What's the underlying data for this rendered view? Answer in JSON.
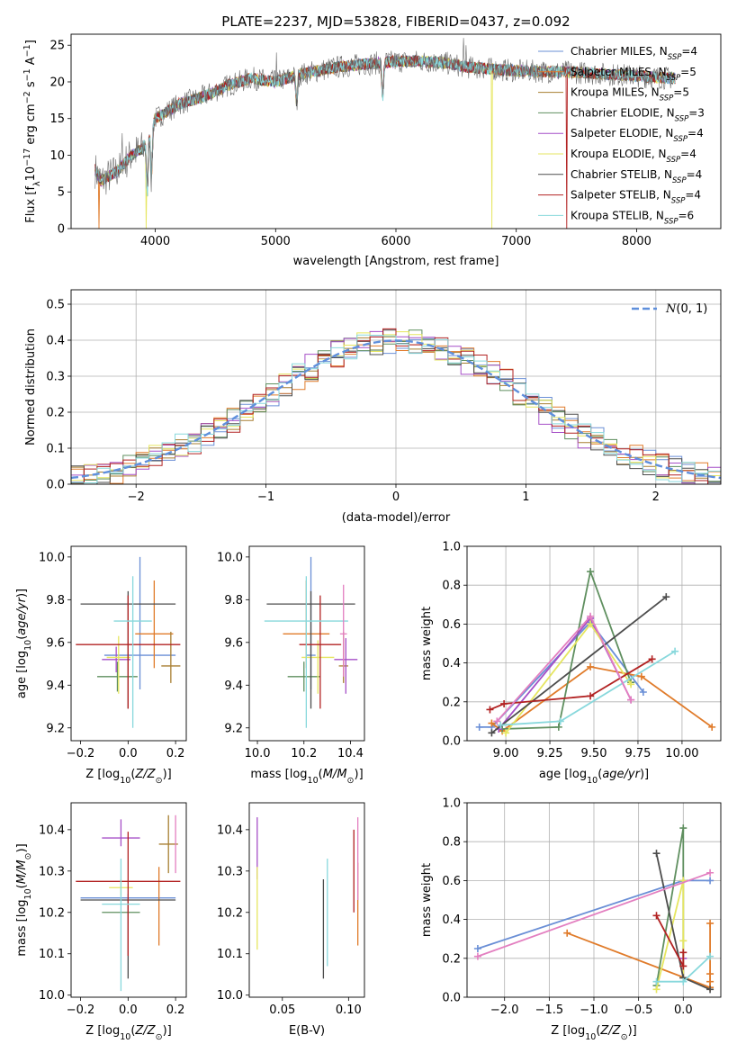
{
  "title": "PLATE=2237, MJD=53828, FIBERID=0437, z=0.092",
  "colors": {
    "Chabrier MILES": "#6a8fd6",
    "Salpeter MILES": "#e07b2a",
    "Kroupa MILES": "#a87f32",
    "Chabrier ELODIE": "#5f8f5f",
    "Salpeter ELODIE": "#a64fc7",
    "Kroupa ELODIE": "#e6e660",
    "Chabrier STELIB": "#4d4d4d",
    "Salpeter STELIB": "#b22222",
    "Kroupa STELIB": "#88d8dc",
    "Kroupa MILES solution": "#e37fc0",
    "normal": "#5f8fdc",
    "spectrum": "#6b6b6b"
  },
  "chart_data": [
    {
      "type": "line",
      "xlabel": "wavelength [Angstrom, rest frame]",
      "ylabel": "Flux [f_λ 10^-17 erg cm^-2 s^-1 A^-1]",
      "xlim": [
        3300,
        8700
      ],
      "ylim": [
        0,
        26.5
      ],
      "xticks": [
        "4000",
        "5000",
        "6000",
        "7000",
        "8000"
      ],
      "yticks": [
        "0",
        "5",
        "10",
        "15",
        "20",
        "25"
      ],
      "legend": "top-right",
      "legend_entries": [
        "Chabrier MILES, N_SSP=4",
        "Salpeter MILES, N_SSP=5",
        "Kroupa MILES, N_SSP=5",
        "Chabrier ELODIE, N_SSP=3",
        "Salpeter ELODIE, N_SSP=4",
        "Kroupa ELODIE, N_SSP=4",
        "Chabrier STELIB, N_SSP=4",
        "Salpeter STELIB, N_SSP=4",
        "Kroupa STELIB, N_SSP=6"
      ],
      "continuum": [
        [
          3500,
          8
        ],
        [
          3550,
          6.5
        ],
        [
          3700,
          8
        ],
        [
          3800,
          10
        ],
        [
          3900,
          11
        ],
        [
          4000,
          15
        ],
        [
          4200,
          17
        ],
        [
          4400,
          18
        ],
        [
          4600,
          19.5
        ],
        [
          4800,
          20.5
        ],
        [
          5000,
          20
        ],
        [
          5200,
          21
        ],
        [
          5500,
          22
        ],
        [
          5800,
          22.5
        ],
        [
          6000,
          22.8
        ],
        [
          6200,
          22.8
        ],
        [
          6400,
          22.6
        ],
        [
          6600,
          22
        ],
        [
          7000,
          21.5
        ],
        [
          7500,
          21.3
        ],
        [
          8000,
          20.8
        ],
        [
          8300,
          20.5
        ]
      ],
      "emission_lines": [
        [
          3727,
          13
        ],
        [
          5007,
          24
        ],
        [
          6563,
          26
        ],
        [
          6583,
          25
        ]
      ],
      "absorption_lines": [
        [
          3933,
          5
        ],
        [
          3968,
          7
        ],
        [
          5175,
          17
        ],
        [
          5890,
          18
        ]
      ],
      "model_dropouts": [
        [
          3530,
          "Salpeter MILES"
        ],
        [
          3925,
          "Kroupa ELODIE"
        ],
        [
          6800,
          "Kroupa ELODIE"
        ],
        [
          7420,
          "Salpeter STELIB"
        ]
      ]
    },
    {
      "type": "histogram",
      "xlabel": "(data-model)/error",
      "ylabel": "Normed distribution",
      "xlim": [
        -2.5,
        2.5
      ],
      "ylim": [
        0,
        0.54
      ],
      "xticks": [
        "−2",
        "−1",
        "0",
        "1",
        "2"
      ],
      "yticks": [
        "0.0",
        "0.1",
        "0.2",
        "0.3",
        "0.4",
        "0.5"
      ],
      "legend": "top-right",
      "legend_entries": [
        "N(0,1)"
      ],
      "bin_width": 0.1
    },
    {
      "type": "errorbar",
      "xlabel": "Z [log10(Z/Z☉)]",
      "ylabel": "age  [log10(age/yr)]",
      "xlim": [
        -0.24,
        0.245
      ],
      "ylim": [
        9.14,
        10.05
      ],
      "xticks": [
        "−0.2",
        "0.0",
        "0.2"
      ],
      "yticks": [
        "9.2",
        "9.4",
        "9.6",
        "9.8",
        "10.0"
      ],
      "points": [
        {
          "series": "Chabrier MILES",
          "x": 0.05,
          "xerr": 0.15,
          "y": 9.54,
          "yerr": [
            0.16,
            0.46
          ]
        },
        {
          "series": "Salpeter MILES",
          "x": 0.11,
          "xerr": 0.08,
          "y": 9.64,
          "yerr": [
            0.16,
            0.25
          ]
        },
        {
          "series": "Kroupa MILES",
          "x": 0.18,
          "xerr": 0.04,
          "y": 9.49,
          "yerr": [
            0.08,
            0.16
          ]
        },
        {
          "series": "Chabrier ELODIE",
          "x": -0.045,
          "xerr": 0.085,
          "y": 9.44,
          "yerr": [
            0.07,
            0.07
          ]
        },
        {
          "series": "Salpeter ELODIE",
          "x": -0.05,
          "xerr": 0.06,
          "y": 9.52,
          "yerr": [
            0.06,
            0.06
          ]
        },
        {
          "series": "Kroupa ELODIE",
          "x": -0.04,
          "xerr": 0.05,
          "y": 9.53,
          "yerr": [
            0.17,
            0.1
          ]
        },
        {
          "series": "Chabrier STELIB",
          "x": 0.0,
          "xerr": 0.2,
          "y": 9.78,
          "yerr": [
            0.49,
            0.06
          ]
        },
        {
          "series": "Salpeter STELIB",
          "x": 0.0,
          "xerr": 0.22,
          "y": 9.59,
          "yerr": [
            0.3,
            0.23
          ]
        },
        {
          "series": "Kroupa STELIB",
          "x": 0.02,
          "xerr": 0.08,
          "y": 9.7,
          "yerr": [
            0.5,
            0.21
          ]
        }
      ]
    },
    {
      "type": "errorbar",
      "xlabel": "mass [log10(M/M☉)]",
      "ylabel": "",
      "xlim": [
        9.965,
        10.46
      ],
      "ylim": [
        9.14,
        10.05
      ],
      "xticks": [
        "10.0",
        "10.2",
        "10.4"
      ],
      "yticks": [
        "9.2",
        "9.4",
        "9.6",
        "9.8",
        "10.0"
      ],
      "points": [
        {
          "series": "Chabrier MILES",
          "x": 10.23,
          "xerr": 0.02,
          "y": 9.54,
          "yerr": [
            0.16,
            0.46
          ]
        },
        {
          "series": "Salpeter MILES",
          "x": 10.21,
          "xerr": 0.1,
          "y": 9.64,
          "yerr": [
            0.16,
            0.25
          ]
        },
        {
          "series": "Kroupa MILES",
          "x": 10.37,
          "xerr": 0.02,
          "y": 9.49,
          "yerr": [
            0.08,
            0.16
          ]
        },
        {
          "series": "Chabrier ELODIE",
          "x": 10.2,
          "xerr": 0.07,
          "y": 9.44,
          "yerr": [
            0.07,
            0.07
          ]
        },
        {
          "series": "Salpeter ELODIE",
          "x": 10.38,
          "xerr": 0.05,
          "y": 9.52,
          "yerr": [
            0.16,
            0.1
          ]
        },
        {
          "series": "Kroupa ELODIE",
          "x": 10.26,
          "xerr": 0.07,
          "y": 9.53,
          "yerr": [
            0.17,
            0.08
          ]
        },
        {
          "series": "Chabrier STELIB",
          "x": 10.23,
          "xerr": 0.19,
          "y": 9.78,
          "yerr": [
            0.49,
            0.06
          ]
        },
        {
          "series": "Salpeter STELIB",
          "x": 10.27,
          "xerr": 0.09,
          "y": 9.59,
          "yerr": [
            0.3,
            0.23
          ]
        },
        {
          "series": "Kroupa STELIB",
          "x": 10.21,
          "xerr": 0.18,
          "y": 9.7,
          "yerr": [
            0.5,
            0.21
          ]
        },
        {
          "series": "Kroupa MILES solution",
          "x": 10.37,
          "xerr": 0.015,
          "y": 9.64,
          "yerr": [
            0.2,
            0.23
          ]
        }
      ]
    },
    {
      "type": "line",
      "xlabel": "age  [log10(age/yr)]",
      "ylabel": "mass weight",
      "xlim": [
        8.78,
        10.22
      ],
      "ylim": [
        0,
        1
      ],
      "xticks": [
        "9.00",
        "9.25",
        "9.50",
        "9.75",
        "10.00"
      ],
      "yticks": [
        "0.0",
        "0.2",
        "0.4",
        "0.6",
        "0.8",
        "1.0"
      ],
      "series": [
        {
          "name": "Chabrier MILES",
          "x": [
            8.85,
            8.92,
            9.48,
            9.78
          ],
          "y": [
            0.07,
            0.07,
            0.61,
            0.25
          ]
        },
        {
          "name": "Salpeter MILES",
          "x": 8.92,
          "xs": [
            8.92,
            8.98,
            9.48,
            9.77,
            10.17
          ],
          "y": [
            0.09,
            0.05,
            0.38,
            0.33,
            0.07
          ]
        },
        {
          "name": "Chabrier ELODIE",
          "x": [
            8.98,
            9.3,
            9.48,
            9.71
          ],
          "y": [
            0.06,
            0.07,
            0.87,
            0.3
          ]
        },
        {
          "name": "Salpeter ELODIE",
          "x": [
            8.96,
            9.48,
            9.71
          ],
          "y": [
            0.06,
            0.63,
            0.21
          ]
        },
        {
          "name": "Kroupa ELODIE",
          "x": [
            9.0,
            9.48,
            9.71
          ],
          "y": [
            0.04,
            0.6,
            0.29
          ]
        },
        {
          "name": "Chabrier STELIB",
          "x": [
            8.92,
            9.91
          ],
          "y": [
            0.04,
            0.74
          ]
        },
        {
          "name": "Salpeter STELIB",
          "x": [
            8.91,
            8.99,
            9.48,
            9.83
          ],
          "y": [
            0.16,
            0.19,
            0.23,
            0.42
          ]
        },
        {
          "name": "Kroupa STELIB",
          "x": [
            8.97,
            9.31,
            9.96
          ],
          "y": [
            0.08,
            0.1,
            0.46
          ]
        },
        {
          "name": "Kroupa MILES solution",
          "x": [
            8.95,
            9.48,
            9.71
          ],
          "y": [
            0.1,
            0.64,
            0.21
          ]
        }
      ]
    },
    {
      "type": "errorbar",
      "xlabel": "Z [log10(Z/Z☉)]",
      "ylabel": "mass [log10(M/M☉)]",
      "xlim": [
        -0.24,
        0.245
      ],
      "ylim": [
        9.995,
        10.465
      ],
      "xticks": [
        "−0.2",
        "0.0",
        "0.2"
      ],
      "yticks": [
        "10.0",
        "10.1",
        "10.2",
        "10.3",
        "10.4"
      ],
      "points": [
        {
          "series": "Chabrier MILES",
          "x": 0.0,
          "xerr": 0.2,
          "y": 10.235,
          "yerr": [
            0.01,
            0.01
          ]
        },
        {
          "series": "Salpeter MILES",
          "x": 0.13,
          "xerr": 0.0,
          "y": 10.21,
          "yerr": [
            0.09,
            0.1
          ]
        },
        {
          "series": "Kroupa MILES",
          "x": 0.17,
          "xerr": 0.04,
          "y": 10.365,
          "yerr": [
            0.07,
            0.07
          ]
        },
        {
          "series": "Chabrier ELODIE",
          "x": -0.03,
          "xerr": 0.08,
          "y": 10.2,
          "yerr": [
            0.0,
            0.0
          ]
        },
        {
          "series": "Salpeter ELODIE",
          "x": -0.03,
          "xerr": 0.08,
          "y": 10.38,
          "yerr": [
            0.02,
            0.045
          ]
        },
        {
          "series": "Kroupa ELODIE",
          "x": -0.03,
          "xerr": 0.05,
          "y": 10.26,
          "yerr": [
            0.02,
            0.02
          ]
        },
        {
          "series": "Chabrier STELIB",
          "x": 0.0,
          "xerr": 0.2,
          "y": 10.23,
          "yerr": [
            0.19,
            0.0
          ]
        },
        {
          "series": "Salpeter STELIB",
          "x": 0.0,
          "xerr": 0.22,
          "y": 10.275,
          "yerr": [
            0.18,
            0.12
          ]
        },
        {
          "series": "Kroupa STELIB",
          "x": -0.03,
          "xerr": 0.08,
          "y": 10.22,
          "yerr": [
            0.21,
            0.11
          ]
        },
        {
          "series": "Kroupa MILES solution",
          "x": 0.2,
          "xerr": 0.0,
          "y": 10.365,
          "yerr": [
            0.07,
            0.07
          ]
        }
      ]
    },
    {
      "type": "errorbar",
      "xlabel": "E(B-V)",
      "ylabel": "",
      "xlim": [
        0.025,
        0.112
      ],
      "ylim": [
        9.995,
        10.465
      ],
      "xticks": [
        "0.05",
        "0.10"
      ],
      "yticks": [
        "10.0",
        "10.1",
        "10.2",
        "10.3",
        "10.4"
      ],
      "points": [
        {
          "series": "Salpeter ELODIE",
          "x": 0.031,
          "y": 10.36,
          "yerr": [
            0.08,
            0.07
          ]
        },
        {
          "series": "Kroupa ELODIE",
          "x": 0.031,
          "y": 10.21,
          "yerr": [
            0.1,
            0.1
          ]
        },
        {
          "series": "Chabrier STELIB",
          "x": 0.081,
          "y": 10.16,
          "yerr": [
            0.12,
            0.12
          ]
        },
        {
          "series": "Kroupa STELIB",
          "x": 0.084,
          "y": 10.2,
          "yerr": [
            0.13,
            0.13
          ]
        },
        {
          "series": "Salpeter STELIB",
          "x": 0.104,
          "y": 10.3,
          "yerr": [
            0.1,
            0.1
          ]
        },
        {
          "series": "Salpeter MILES",
          "x": 0.107,
          "y": 10.22,
          "yerr": [
            0.1,
            0.1
          ]
        },
        {
          "series": "Kroupa MILES solution",
          "x": 0.107,
          "y": 10.33,
          "yerr": [
            0.1,
            0.1
          ]
        }
      ]
    },
    {
      "type": "line",
      "xlabel": "Z [log10(Z/Z☉)]",
      "ylabel": "mass weight",
      "xlim": [
        -2.42,
        0.42
      ],
      "ylim": [
        0,
        1
      ],
      "xticks": [
        "−2.0",
        "−1.5",
        "−1.0",
        "−0.5",
        "0.0"
      ],
      "yticks": [
        "0.0",
        "0.2",
        "0.4",
        "0.6",
        "0.8",
        "1.0"
      ],
      "series": [
        {
          "name": "Chabrier MILES",
          "x": [
            -2.3,
            0.0,
            0.3
          ],
          "y": [
            0.25,
            0.6,
            0.6
          ]
        },
        {
          "name": "Salpeter MILES",
          "x": [
            -1.3,
            0.3,
            0.3,
            0.3,
            0.3
          ],
          "y": [
            0.33,
            0.05,
            0.38,
            0.12,
            0.08
          ]
        },
        {
          "name": "Chabrier ELODIE",
          "x": [
            -0.3,
            0.0,
            0.0
          ],
          "y": [
            0.06,
            0.87,
            0.1
          ]
        },
        {
          "name": "Salpeter ELODIE",
          "x": [
            0.0,
            0.0
          ],
          "y": [
            0.1,
            0.2
          ]
        },
        {
          "name": "Kroupa ELODIE",
          "x": [
            -0.3,
            0.0,
            0.0,
            0.0
          ],
          "y": [
            0.04,
            0.6,
            0.29,
            0.1
          ]
        },
        {
          "name": "Chabrier STELIB",
          "x": [
            -0.3,
            0.0,
            0.3
          ],
          "y": [
            0.74,
            0.1,
            0.04
          ]
        },
        {
          "name": "Salpeter STELIB",
          "x": [
            -0.3,
            0.0,
            0.0
          ],
          "y": [
            0.42,
            0.16,
            0.23
          ]
        },
        {
          "name": "Kroupa STELIB",
          "x": [
            -0.3,
            0.0,
            0.3
          ],
          "y": [
            0.08,
            0.08,
            0.21
          ]
        },
        {
          "name": "Kroupa MILES solution",
          "x": [
            -2.3,
            0.3
          ],
          "y": [
            0.21,
            0.64
          ]
        }
      ]
    }
  ]
}
